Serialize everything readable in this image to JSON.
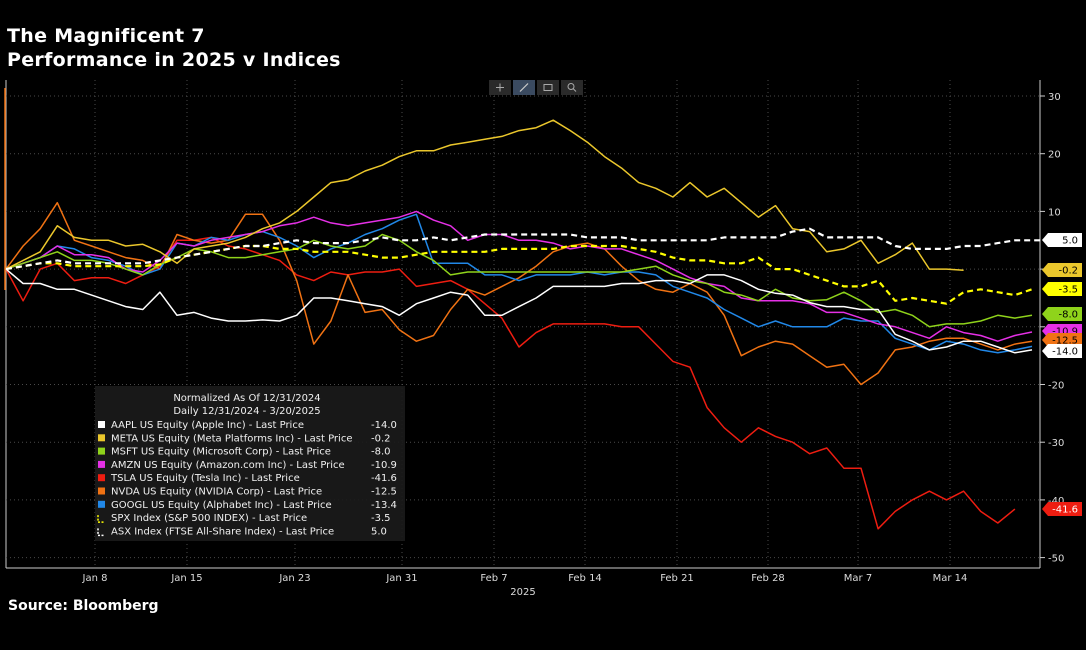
{
  "title": {
    "line1": "The Magnificent 7",
    "line2": "Performance in 2025 v Indices"
  },
  "source": "Source: Bloomberg",
  "toolbar": {
    "icons": [
      "crosshair-icon",
      "draw-icon",
      "table-icon",
      "zoom-icon"
    ]
  },
  "chart_data": {
    "type": "line",
    "x_tick_labels": [
      "Jan 8",
      "Jan 15",
      "Jan 23",
      "Jan 31",
      "Feb 7",
      "Feb 14",
      "Feb 21",
      "Feb 28",
      "Mar 7",
      "Mar 14"
    ],
    "x_axis_year": "2025",
    "y_tick_labels": [
      "30",
      "20",
      "10",
      "",
      "-10",
      "-20",
      "-30",
      "-40",
      "-50"
    ],
    "ylim": [
      -50,
      30
    ],
    "grid": true,
    "legend": {
      "placement": "bottom-left",
      "header1": "Normalized As Of 12/31/2024",
      "header2": "Daily 12/31/2024 - 3/20/2025"
    },
    "series": [
      {
        "name": "AAPL US Equity (Apple Inc) - Last Price",
        "last": "-14.0",
        "color": "#ffffff",
        "dashed": false,
        "values": [
          0,
          -2.5,
          -2.5,
          -3.5,
          -3.5,
          -4.5,
          -5.5,
          -6.5,
          -7,
          -4,
          -8,
          -7.5,
          -8.5,
          -9,
          -9,
          -8.8,
          -9,
          -8,
          -5,
          -5,
          -5.5,
          -6,
          -6.5,
          -8,
          -6,
          -5,
          -4,
          -4.5,
          -8,
          -8,
          -6.5,
          -5,
          -3,
          -3,
          -3,
          -3,
          -2.5,
          -2.5,
          -2,
          -2,
          -2.5,
          -1,
          -1,
          -2,
          -3.5,
          -4.2,
          -4.5,
          -5.8,
          -6.5,
          -6.5,
          -7,
          -7,
          -11.3,
          -12.5,
          -14,
          -13.5,
          -12.5,
          -12.5,
          -13.5,
          -14.5,
          -14
        ]
      },
      {
        "name": "META US Equity (Meta Platforms Inc) - Last Price",
        "last": "-0.2",
        "color": "#ebc72c",
        "dashed": false,
        "values": [
          0,
          1.5,
          3,
          7.5,
          5.5,
          5,
          5,
          4,
          4.3,
          3,
          1,
          3.5,
          4,
          4.5,
          5.5,
          7,
          8,
          10,
          12.5,
          15,
          15.5,
          17,
          18,
          19.5,
          20.5,
          20.5,
          21.5,
          22,
          22.5,
          23,
          24,
          24.5,
          25.8,
          24,
          22,
          19.5,
          17.5,
          15,
          14,
          12.5,
          15,
          12.5,
          14,
          11.5,
          9,
          11,
          7,
          6.5,
          3,
          3.5,
          5,
          1,
          2.5,
          4.5,
          0,
          0,
          -0.2
        ]
      },
      {
        "name": "MSFT US Equity (Microsoft Corp) - Last Price",
        "last": "-8.0",
        "color": "#8fd31b",
        "dashed": false,
        "values": [
          0,
          1,
          2,
          3,
          1.5,
          1.5,
          1,
          0,
          -1,
          0.8,
          2,
          3.5,
          3,
          2,
          2,
          2.5,
          3,
          3.5,
          5,
          4,
          3.5,
          4,
          6,
          5,
          3,
          1.5,
          -1,
          -0.5,
          -0.5,
          -0.5,
          -0.5,
          -0.5,
          -0.5,
          -0.5,
          -0.5,
          -0.5,
          -0.5,
          0,
          0.5,
          -1,
          -2,
          -2.5,
          -4,
          -4.5,
          -5.5,
          -3.5,
          -5,
          -5.5,
          -5.3,
          -4,
          -5.5,
          -7.5,
          -7,
          -8,
          -10,
          -9.5,
          -9.5,
          -9,
          -8,
          -8.5,
          -8
        ]
      },
      {
        "name": "AMZN US Equity (Amazon.com Inc) - Last Price",
        "last": "-10.9",
        "color": "#e530e6",
        "dashed": false,
        "values": [
          0,
          1,
          2,
          4,
          2.5,
          2.5,
          2,
          0,
          -0.5,
          1.5,
          4.5,
          4,
          5,
          5.5,
          6,
          6.5,
          7.5,
          8,
          9,
          8,
          7.5,
          8,
          8.5,
          9,
          10,
          8.5,
          7.5,
          5,
          6,
          6,
          5,
          5,
          4.5,
          3.5,
          4,
          3.5,
          3.5,
          2.5,
          1.5,
          0,
          -1.5,
          -2.5,
          -3,
          -5,
          -5.5,
          -5.5,
          -5.5,
          -6,
          -7.5,
          -7.5,
          -8.5,
          -9.5,
          -10,
          -11,
          -12,
          -10,
          -11,
          -11.5,
          -12.5,
          -11.5,
          -10.9
        ]
      },
      {
        "name": "TSLA US Equity (Tesla Inc) - Last Price",
        "last": "-41.6",
        "color": "#ee1d11",
        "dashed": false,
        "values": [
          0,
          -5.5,
          0,
          1,
          -2,
          -1.5,
          -1.5,
          -2.5,
          -1,
          0.5,
          5,
          5,
          5.5,
          4,
          3.5,
          2.5,
          1.5,
          -1,
          -2,
          -0.5,
          -1,
          -0.5,
          -0.5,
          0,
          -3,
          -2.5,
          -2,
          -3.5,
          -6,
          -8.5,
          -13.5,
          -11,
          -9.5,
          -9.5,
          -9.5,
          -9.5,
          -10,
          -10,
          -13,
          -16,
          -17,
          -24,
          -27.5,
          -30,
          -27.5,
          -29,
          -30,
          -32,
          -31,
          -34.5,
          -34.5,
          -45,
          -42,
          -40,
          -38.5,
          -40,
          -38.5,
          -42,
          -44,
          -41.6
        ]
      },
      {
        "name": "NVDA US Equity (NVIDIA Corp) - Last Price",
        "last": "-12.5",
        "color": "#f07213",
        "dashed": false,
        "values": [
          0,
          4,
          7,
          11.5,
          5,
          4,
          3,
          2,
          1.5,
          0,
          6,
          5,
          4.5,
          5,
          9.5,
          9.5,
          5,
          -2,
          -13,
          -9,
          -1,
          -7.5,
          -7,
          -10.5,
          -12.5,
          -11.5,
          -7,
          -3.5,
          -4.5,
          -3,
          -1.5,
          0.5,
          3,
          4,
          4.5,
          3.5,
          0.5,
          -2,
          -3.5,
          -4,
          -2.5,
          -4,
          -8,
          -15,
          -13.5,
          -12.5,
          -13,
          -15,
          -17,
          -16.5,
          -20,
          -18,
          -14,
          -13.5,
          -12.5,
          -12,
          -12,
          -13,
          -14,
          -13,
          -12.5
        ]
      },
      {
        "name": "GOOGL US Equity (Alphabet Inc) - Last Price",
        "last": "-13.4",
        "color": "#2188e8",
        "dashed": false,
        "values": [
          0,
          1,
          2,
          4,
          3.5,
          2,
          1.5,
          0.5,
          -1,
          0,
          4.5,
          4,
          5.5,
          5,
          6,
          6.5,
          5.5,
          4,
          2,
          3.5,
          4.5,
          6,
          7,
          8.5,
          9.5,
          1,
          1,
          1,
          -1,
          -1,
          -2,
          -1,
          -1,
          -1,
          -0.5,
          -1,
          -0.5,
          -0.5,
          -1,
          -3,
          -4,
          -5,
          -7,
          -8.5,
          -10,
          -9,
          -10,
          -10,
          -10,
          -8.5,
          -9,
          -9,
          -12,
          -13,
          -14,
          -12.5,
          -13,
          -14,
          -14.5,
          -14,
          -13.4
        ]
      },
      {
        "name": "SPX Index (S&P 500 INDEX) - Last Price",
        "last": "-3.5",
        "color": "#ffff00",
        "dashed": true,
        "values": [
          0,
          0.5,
          1,
          1,
          0.5,
          0.5,
          0.5,
          0.5,
          0.5,
          0.8,
          2,
          2.5,
          3,
          3.5,
          4,
          4,
          3.5,
          3.5,
          3,
          3,
          3,
          2.5,
          2,
          2,
          2.5,
          3,
          3,
          3,
          3,
          3.5,
          3.5,
          3.5,
          3.5,
          4,
          4,
          4,
          4,
          3.5,
          3,
          2,
          1.5,
          1.5,
          1,
          1,
          2,
          0,
          0,
          -1,
          -2,
          -3,
          -3,
          -2,
          -5.5,
          -5,
          -5.5,
          -6,
          -4,
          -3.5,
          -4,
          -4.5,
          -3.5
        ]
      },
      {
        "name": "ASX Index (FTSE All-Share Index) - Last Price",
        "last": "5.0",
        "color": "#ffffff",
        "dashed": true,
        "values": [
          0,
          0.5,
          1,
          1.5,
          1,
          1,
          1,
          1,
          1,
          1.5,
          2,
          2.5,
          3,
          3.5,
          4,
          4,
          4.5,
          5,
          4.5,
          4.5,
          4.5,
          5,
          5.5,
          5,
          5,
          5.5,
          5,
          5.5,
          6,
          6,
          6,
          6,
          6,
          6,
          5.5,
          5.5,
          5.5,
          5,
          5,
          5,
          5,
          5,
          5.5,
          5.5,
          5.5,
          5.5,
          6.5,
          7,
          5.5,
          5.5,
          5.5,
          5.5,
          4,
          3.5,
          3.5,
          3.5,
          4,
          4,
          4.5,
          5,
          5,
          5
        ]
      }
    ]
  }
}
